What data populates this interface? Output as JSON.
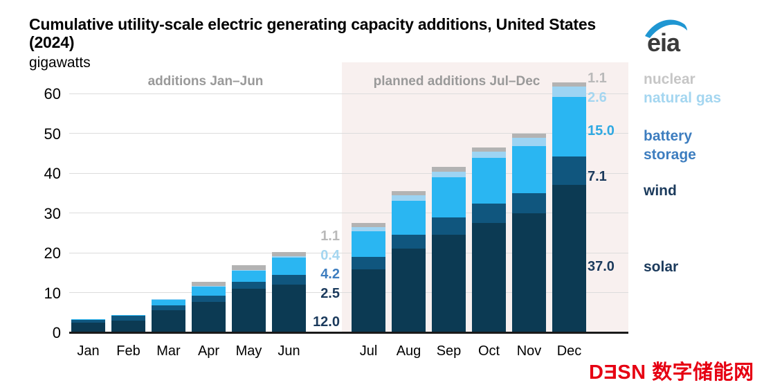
{
  "header": {
    "title_line1": "Cumulative utility-scale electric generating capacity additions, United States",
    "title_line2": "(2024)",
    "units_label": "gigawatts"
  },
  "eia_logo": {
    "text": "eia",
    "swoosh_color": "#1f96d2",
    "text_color": "#3b3b3b"
  },
  "watermark": {
    "latin_prefix": "D",
    "latin_flipped": "E",
    "latin_suffix": "SN",
    "cjk": "数字储能网",
    "color": "#e60012"
  },
  "regions": {
    "left_label": "additions Jan–Jun",
    "right_label": "planned additions Jul–Dec",
    "right_region_bg": "#f8f0ef"
  },
  "y_axis": {
    "ticks": [
      "0",
      "10",
      "20",
      "30",
      "40",
      "50",
      "60"
    ]
  },
  "chart_data": {
    "type": "bar",
    "stacked": true,
    "values_are_cumulative": true,
    "title": "Cumulative utility-scale electric generating capacity additions, United States (2024)",
    "ylabel": "gigawatts",
    "ylim": [
      0,
      65
    ],
    "grid": "horizontal",
    "categories": [
      "Jan",
      "Feb",
      "Mar",
      "Apr",
      "May",
      "Jun",
      "Jul",
      "Aug",
      "Sep",
      "Oct",
      "Nov",
      "Dec"
    ],
    "series": [
      {
        "name": "solar",
        "color": "#0c3a53",
        "values": [
          2.4,
          3.0,
          5.5,
          7.7,
          11.0,
          12.0,
          15.8,
          21.0,
          24.6,
          27.5,
          30.0,
          37.0
        ]
      },
      {
        "name": "wind",
        "color": "#10567e",
        "values": [
          0.7,
          1.2,
          1.2,
          1.5,
          1.7,
          2.5,
          3.1,
          3.5,
          4.2,
          4.9,
          5.0,
          7.1
        ]
      },
      {
        "name": "battery storage",
        "color": "#2ab6f2",
        "values": [
          0.2,
          0.2,
          1.5,
          2.2,
          2.7,
          4.2,
          6.5,
          8.6,
          10.1,
          11.4,
          11.8,
          15.0
        ]
      },
      {
        "name": "natural gas",
        "color": "#9dd4f3",
        "values": [
          0.0,
          0.0,
          0.1,
          0.2,
          0.3,
          0.4,
          1.0,
          1.3,
          1.5,
          1.6,
          2.0,
          2.6
        ]
      },
      {
        "name": "nuclear",
        "color": "#b3b3b3",
        "values": [
          0.0,
          0.0,
          0.0,
          1.1,
          1.1,
          1.1,
          1.1,
          1.1,
          1.1,
          1.1,
          1.1,
          1.1
        ]
      }
    ],
    "annotations": {
      "jun": [
        {
          "text": "1.1",
          "series": "nuclear",
          "color": "#b9b9b9"
        },
        {
          "text": "0.4",
          "series": "natural gas",
          "color": "#a4d6f0"
        },
        {
          "text": "4.2",
          "series": "battery storage",
          "color": "#3d7dbf"
        },
        {
          "text": "2.5",
          "series": "wind",
          "color": "#1b3a5c"
        },
        {
          "text": "12.0",
          "series": "solar",
          "color": "#1b3a5c"
        }
      ],
      "dec": [
        {
          "text": "1.1",
          "series": "nuclear",
          "color": "#b9b9b9"
        },
        {
          "text": "2.6",
          "series": "natural gas",
          "color": "#a4d6f0"
        },
        {
          "text": "15.0",
          "series": "battery storage",
          "color": "#2fa9e2"
        },
        {
          "text": "7.1",
          "series": "wind",
          "color": "#1b3a5c"
        },
        {
          "text": "37.0",
          "series": "solar",
          "color": "#1b3a5c"
        }
      ]
    }
  },
  "legend": [
    {
      "label": "nuclear",
      "color": "#c6c6c6"
    },
    {
      "label": "natural gas",
      "color": "#a4d6f0"
    },
    {
      "label": "battery storage",
      "color": "#3d7dbf"
    },
    {
      "label": "wind",
      "color": "#1b3a5c"
    },
    {
      "label": "solar",
      "color": "#1b3a5c"
    }
  ]
}
